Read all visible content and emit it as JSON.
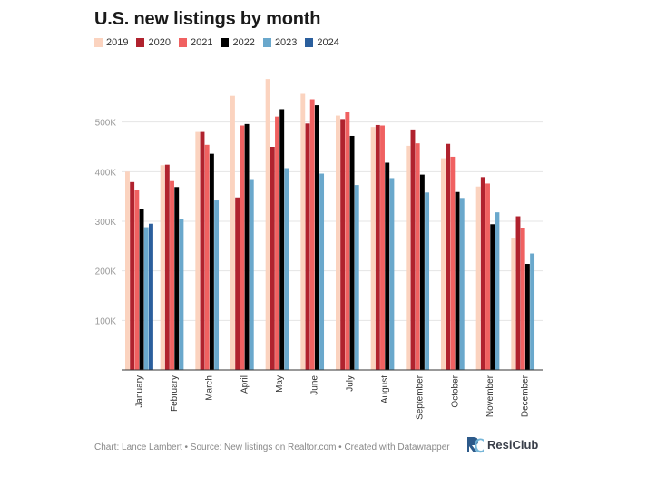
{
  "header": {
    "title": "U.S. new listings by month"
  },
  "footer": {
    "credit": "Chart: Lance Lambert • Source: New listings on Realtor.com • Created with Datawrapper"
  },
  "logo": {
    "text": "ResiClub",
    "mark": "RC",
    "colors": [
      "#2d5a8a",
      "#6fb2d6"
    ]
  },
  "chart_data": {
    "type": "bar",
    "title": "U.S. new listings by month",
    "categories": [
      "January",
      "February",
      "March",
      "April",
      "May",
      "June",
      "July",
      "August",
      "September",
      "October",
      "November",
      "December"
    ],
    "ylim": [
      0,
      600000
    ],
    "yticks": [
      100000,
      200000,
      300000,
      400000,
      500000
    ],
    "ytick_labels": [
      "100K",
      "200K",
      "300K",
      "400K",
      "500K"
    ],
    "grid": true,
    "legend_position": "top",
    "series": [
      {
        "name": "2019",
        "color": "#fbd3bf",
        "values": [
          400000,
          413000,
          480000,
          553000,
          587000,
          557000,
          513000,
          490000,
          452000,
          427000,
          370000,
          267000
        ]
      },
      {
        "name": "2020",
        "color": "#b0222e",
        "values": [
          379000,
          414000,
          480000,
          348000,
          450000,
          497000,
          506000,
          494000,
          485000,
          456000,
          389000,
          310000
        ]
      },
      {
        "name": "2021",
        "color": "#f06161",
        "values": [
          363000,
          381000,
          454000,
          493000,
          511000,
          546000,
          521000,
          493000,
          457000,
          430000,
          376000,
          287000
        ]
      },
      {
        "name": "2022",
        "color": "#000000",
        "values": [
          324000,
          369000,
          436000,
          496000,
          526000,
          534000,
          472000,
          418000,
          394000,
          359000,
          294000,
          214000
        ]
      },
      {
        "name": "2023",
        "color": "#6aa8cc",
        "values": [
          288000,
          305000,
          342000,
          385000,
          407000,
          396000,
          373000,
          387000,
          358000,
          347000,
          318000,
          235000
        ]
      },
      {
        "name": "2024",
        "color": "#2b5f9d",
        "values": [
          295000,
          null,
          null,
          null,
          null,
          null,
          null,
          null,
          null,
          null,
          null,
          null
        ]
      }
    ]
  }
}
